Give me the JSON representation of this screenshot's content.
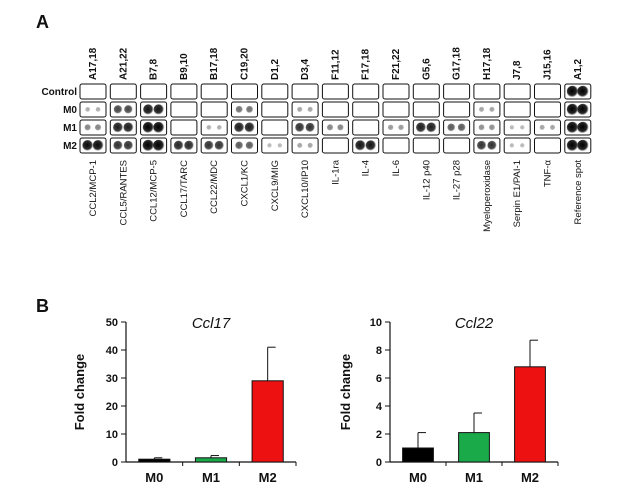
{
  "panel_a": {
    "label": "A",
    "rows": [
      "Control",
      "M0",
      "M1",
      "M2"
    ],
    "coordinates": [
      "A17,18",
      "A21,22",
      "B7,8",
      "B9,10",
      "B17,18",
      "C19,20",
      "D1,2",
      "D3,4",
      "F11,12",
      "F17,18",
      "F21,22",
      "G5,6",
      "G17,18",
      "H17,18",
      "J7,8",
      "J15,16",
      "A1,2"
    ],
    "proteins": [
      "CCL2/MCP-1",
      "CCL5/RANTES",
      "CCL12/MCP-5",
      "CCL17/TARC",
      "CCL22/MDC",
      "CXCL1/KC",
      "CXCL9/MIG",
      "CXCL10/IP10",
      "IL-1ra",
      "IL-4",
      "IL-6",
      "IL-12 p40",
      "IL-27 p28",
      "Myeloperoxidase",
      "Serpin E1/PAI-1",
      "TNF-α",
      "Reference spot"
    ],
    "intensity": [
      [
        0,
        0,
        0,
        0,
        0,
        0,
        0,
        0,
        0,
        0,
        0,
        0,
        0,
        0,
        0,
        0,
        1.0
      ],
      [
        0.1,
        0.6,
        0.85,
        0,
        0,
        0.4,
        0,
        0.15,
        0,
        0,
        0,
        0,
        0,
        0.15,
        0,
        0,
        1.0
      ],
      [
        0.3,
        0.8,
        0.95,
        0,
        0.1,
        0.8,
        0,
        0.7,
        0.3,
        0,
        0.2,
        0.8,
        0.5,
        0.25,
        0.05,
        0.15,
        1.0
      ],
      [
        0.9,
        0.7,
        1.0,
        0.75,
        0.7,
        0.5,
        0.05,
        0.15,
        0,
        0.85,
        0,
        0,
        0,
        0.7,
        0.05,
        0,
        1.0
      ]
    ]
  },
  "panel_b": {
    "label": "B"
  },
  "chart_data": [
    {
      "type": "bar",
      "title": "Ccl17",
      "ylabel": "Fold change",
      "categories": [
        "M0",
        "M1",
        "M2"
      ],
      "values": [
        1,
        1.5,
        29
      ],
      "errors": [
        0.5,
        0.8,
        12
      ],
      "colors": [
        "#000000",
        "#1aaa4a",
        "#ee1111"
      ],
      "ylim": [
        0,
        50
      ],
      "yticks": [
        0,
        10,
        20,
        30,
        40,
        50
      ]
    },
    {
      "type": "bar",
      "title": "Ccl22",
      "ylabel": "Fold change",
      "categories": [
        "M0",
        "M1",
        "M2"
      ],
      "values": [
        1,
        2.1,
        6.8
      ],
      "errors": [
        1.1,
        1.4,
        1.9
      ],
      "colors": [
        "#000000",
        "#1aaa4a",
        "#ee1111"
      ],
      "ylim": [
        0,
        10
      ],
      "yticks": [
        0,
        2,
        4,
        6,
        8,
        10
      ]
    }
  ]
}
